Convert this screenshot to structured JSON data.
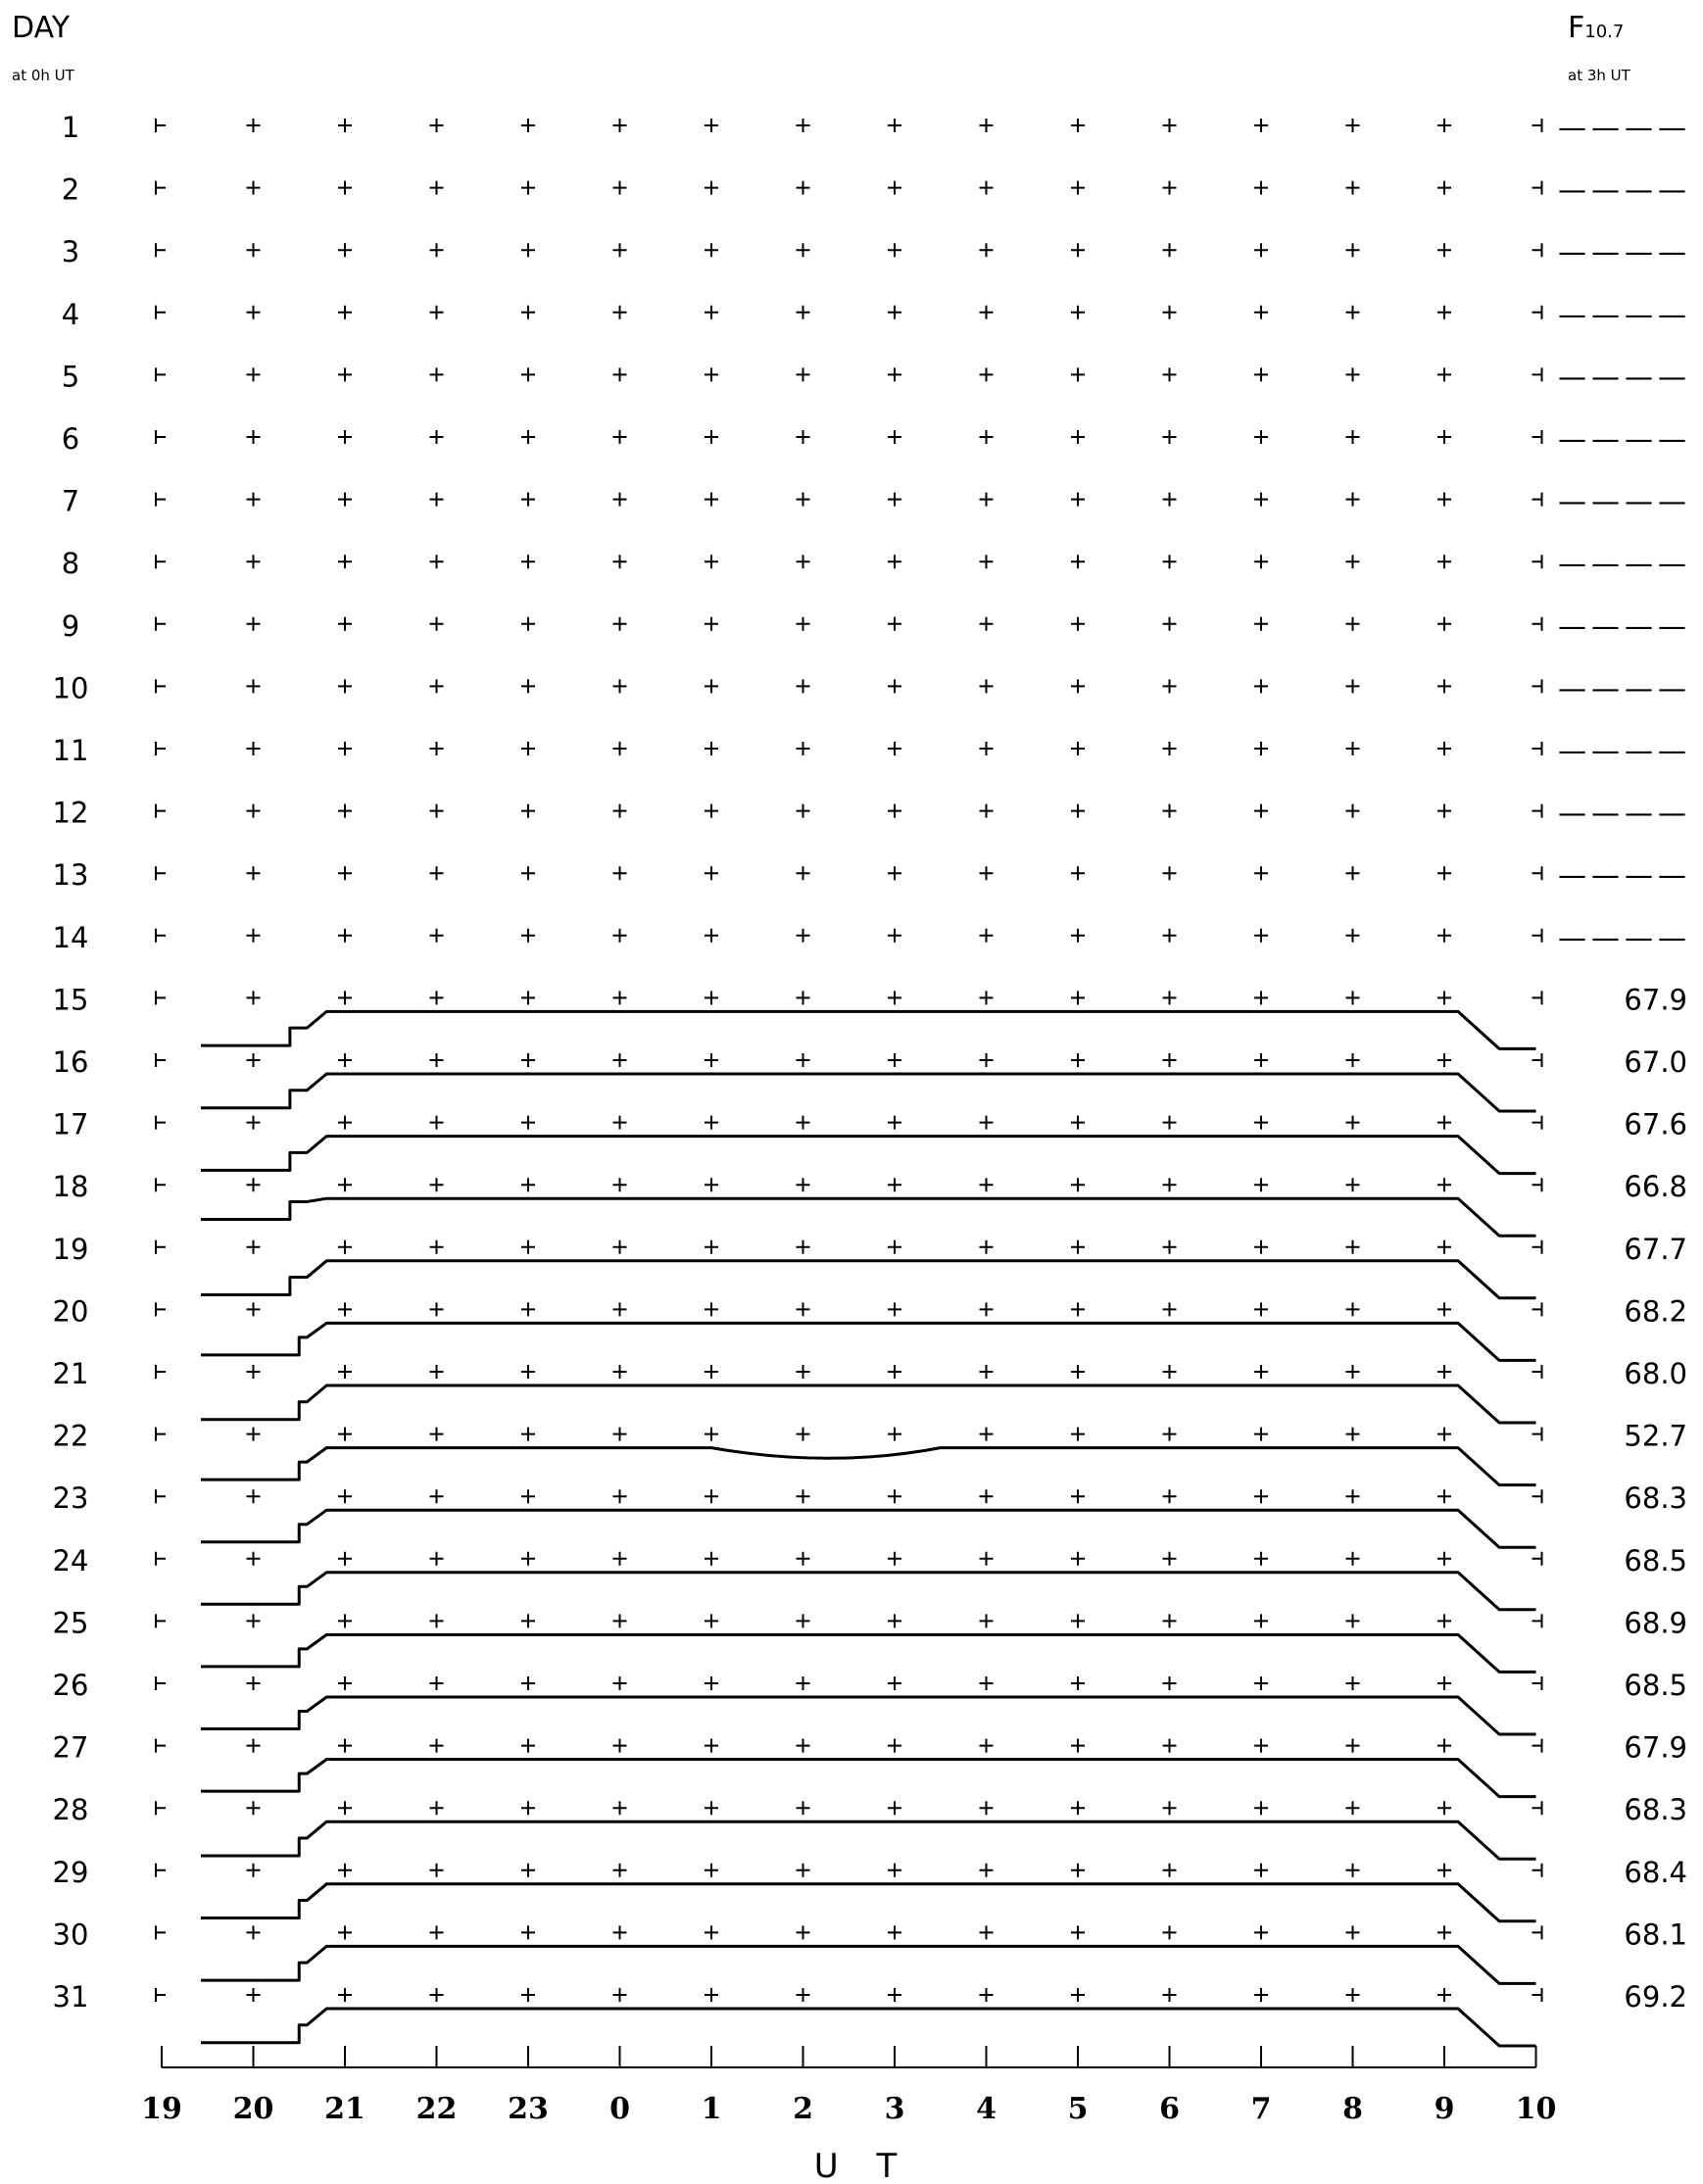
{
  "chart_data": {
    "type": "line",
    "title": "",
    "header_left": "DAY",
    "header_left_sub": "at 0h UT",
    "header_right_main": "F",
    "header_right_sub_script": "10.7",
    "header_right_sub": "at 3h UT",
    "xlabel": "U T",
    "x_ticks": [
      "19",
      "20",
      "21",
      "22",
      "23",
      "0",
      "1",
      "2",
      "3",
      "4",
      "5",
      "6",
      "7",
      "8",
      "9",
      "10"
    ],
    "days": [
      "1",
      "2",
      "3",
      "4",
      "5",
      "6",
      "7",
      "8",
      "9",
      "10",
      "11",
      "12",
      "13",
      "14",
      "15",
      "16",
      "17",
      "18",
      "19",
      "20",
      "21",
      "22",
      "23",
      "24",
      "25",
      "26",
      "27",
      "28",
      "29",
      "30",
      "31"
    ],
    "f107": [
      "----",
      "----",
      "----",
      "----",
      "----",
      "----",
      "----",
      "----",
      "----",
      "----",
      "----",
      "----",
      "----",
      "----",
      "67.9",
      "67.0",
      "67.6",
      "66.8",
      "67.7",
      "68.2",
      "68.0",
      "52.7",
      "68.3",
      "68.5",
      "68.9",
      "68.5",
      "67.9",
      "68.3",
      "68.4",
      "68.1",
      "69.2"
    ],
    "traces": [
      {
        "day": 15,
        "start_level": 0.25,
        "step_hour": 20.4,
        "dip": 0
      },
      {
        "day": 16,
        "start_level": 0.25,
        "step_hour": 20.4,
        "dip": 0
      },
      {
        "day": 17,
        "start_level": 0.25,
        "step_hour": 20.4,
        "dip": 0
      },
      {
        "day": 18,
        "start_level": 0.55,
        "step_hour": 20.4,
        "dip": 0
      },
      {
        "day": 19,
        "start_level": 0.25,
        "step_hour": 20.4,
        "dip": 0
      },
      {
        "day": 20,
        "start_level": 0.3,
        "step_hour": 20.5,
        "dip": 0
      },
      {
        "day": 21,
        "start_level": 0.25,
        "step_hour": 20.5,
        "dip": 0
      },
      {
        "day": 22,
        "start_level": 0.3,
        "step_hour": 20.5,
        "dip": 0.55
      },
      {
        "day": 23,
        "start_level": 0.3,
        "step_hour": 20.5,
        "dip": 0
      },
      {
        "day": 24,
        "start_level": 0.3,
        "step_hour": 20.5,
        "dip": 0
      },
      {
        "day": 25,
        "start_level": 0.3,
        "step_hour": 20.5,
        "dip": 0
      },
      {
        "day": 26,
        "start_level": 0.3,
        "step_hour": 20.5,
        "dip": 0
      },
      {
        "day": 27,
        "start_level": 0.3,
        "step_hour": 20.5,
        "dip": 0
      },
      {
        "day": 28,
        "start_level": 0.25,
        "step_hour": 20.5,
        "dip": 0
      },
      {
        "day": 29,
        "start_level": 0.25,
        "step_hour": 20.5,
        "dip": 0
      },
      {
        "day": 30,
        "start_level": 0.25,
        "step_hour": 20.5,
        "dip": 0
      },
      {
        "day": 31,
        "start_level": 0.25,
        "step_hour": 20.5,
        "dip": 0
      }
    ],
    "grid": "plus-markers",
    "colors": {
      "ink": "#000000",
      "background": "#ffffff"
    }
  }
}
